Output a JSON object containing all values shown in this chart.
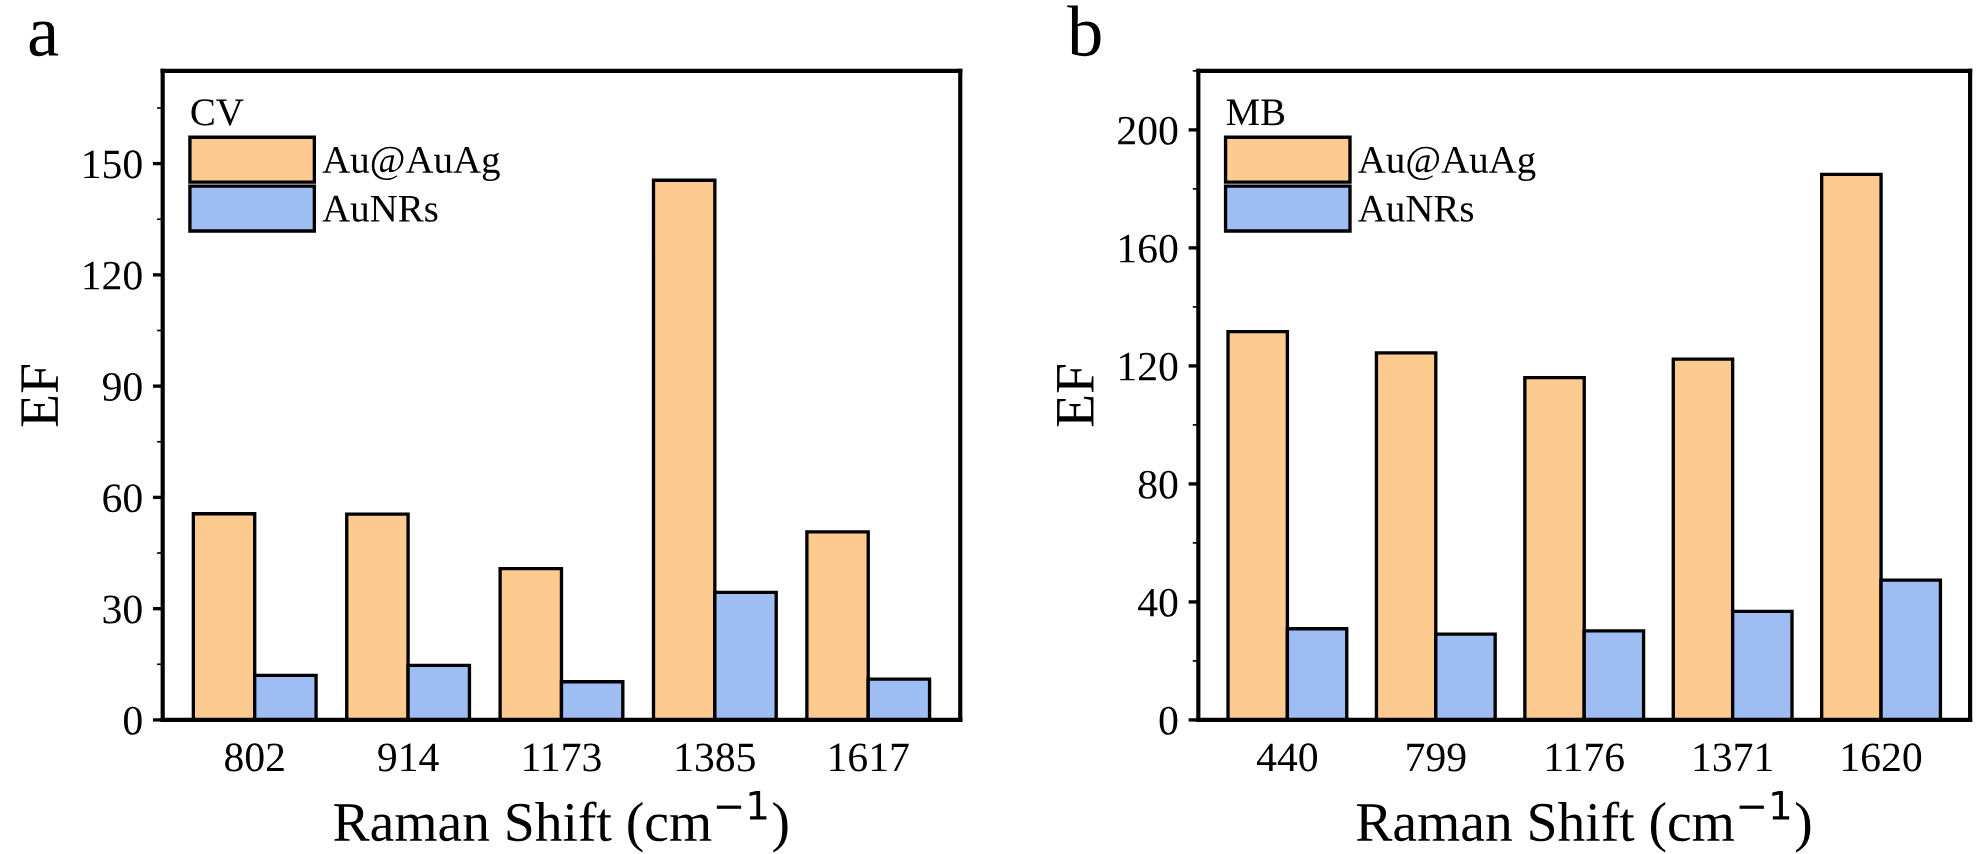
{
  "chart_data": [
    {
      "type": "bar",
      "title": "a",
      "xlabel": "Raman Shift (cm$^{−1}$)",
      "ylabel": "EF",
      "legend_title": "CV",
      "legend": "top left",
      "categories": [
        "802",
        "914",
        "1173",
        "1385",
        "1617"
      ],
      "series": [
        {
          "name": "Au@AuAg",
          "color": "#fdcb8f",
          "values": [
            55.6,
            55.5,
            40.8,
            145.5,
            50.7
          ]
        },
        {
          "name": "AuNRs",
          "color": "#9dbdf3",
          "values": [
            12,
            14.7,
            10.3,
            34.4,
            11
          ]
        }
      ],
      "ylim": [
        0,
        175
      ],
      "yticks": [
        0,
        30,
        60,
        90,
        120,
        150
      ],
      "grid": false
    },
    {
      "type": "bar",
      "title": "b",
      "xlabel": "Raman Shift (cm$^{−1}$)",
      "ylabel": "EF",
      "legend_title": "MB",
      "legend": "top left",
      "categories": [
        "440",
        "799",
        "1176",
        "1371",
        "1620"
      ],
      "series": [
        {
          "name": "Au@AuAg",
          "color": "#fdcb8f",
          "values": [
            131.6,
            124.4,
            116,
            122.3,
            184.9
          ]
        },
        {
          "name": "AuNRs",
          "color": "#9dbdf3",
          "values": [
            30.9,
            29.1,
            30.2,
            36.8,
            47.4
          ]
        }
      ],
      "ylim": [
        0,
        220
      ],
      "yticks": [
        0,
        40,
        80,
        120,
        160,
        200
      ],
      "grid": false
    }
  ]
}
